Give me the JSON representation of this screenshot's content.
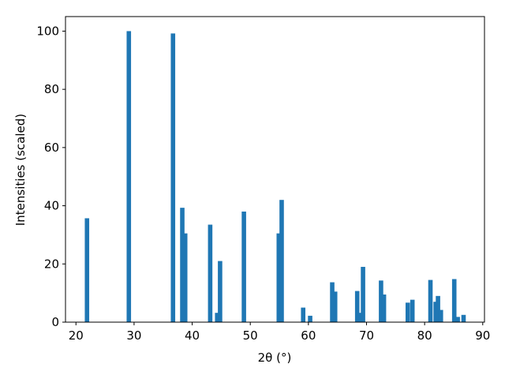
{
  "chart_data": {
    "type": "bar",
    "x_label": "2θ (°)",
    "y_label": "Intensities (scaled)",
    "x": [
      21.9,
      29.1,
      36.7,
      38.3,
      38.8,
      43.1,
      44.3,
      44.8,
      48.9,
      54.9,
      55.4,
      59.1,
      60.3,
      64.1,
      64.6,
      68.4,
      69.0,
      69.4,
      72.5,
      73.0,
      77.1,
      77.9,
      81.0,
      81.9,
      82.3,
      82.8,
      85.1,
      85.7,
      86.7
    ],
    "values": [
      35.7,
      100,
      99.2,
      39.3,
      30.5,
      33.5,
      3.2,
      21,
      38,
      30.5,
      42,
      5,
      2.2,
      13.7,
      10.5,
      10.7,
      3.2,
      19,
      14.3,
      9.5,
      6.7,
      7.7,
      14.5,
      7,
      9,
      4.2,
      14.8,
      1.8,
      2.5
    ],
    "color": "#1f77b4",
    "xlim": [
      18.2,
      90.3
    ],
    "xticks": [
      20,
      30,
      40,
      50,
      60,
      70,
      80,
      90
    ],
    "ylim": [
      0,
      105
    ],
    "yticks": [
      0,
      20,
      40,
      60,
      80,
      100
    ],
    "grid": false
  }
}
